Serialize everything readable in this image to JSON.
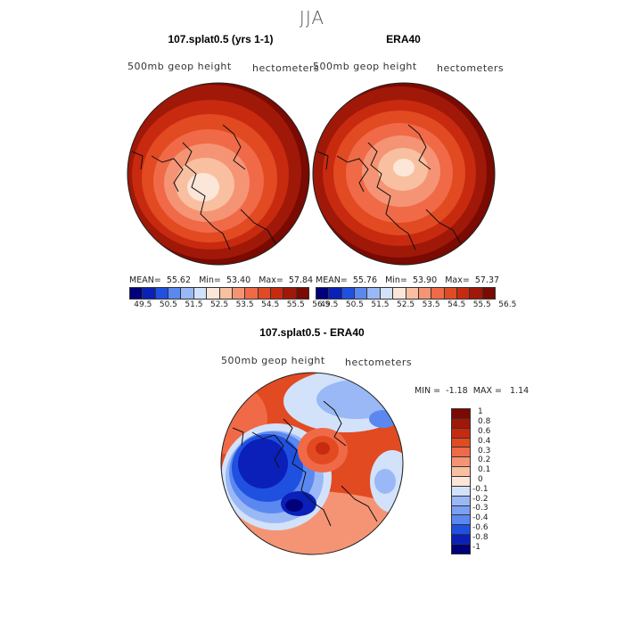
{
  "page": {
    "title": "JJA"
  },
  "panels": [
    {
      "title": "107.splat0.5 (yrs 1-1)",
      "variable": "500mb geop height",
      "units": "hectometers",
      "mean_label": "MEAN=",
      "mean": "55.62",
      "min_label": "Min=",
      "min": "53.40",
      "max_label": "Max=",
      "max": "57.84"
    },
    {
      "title": "ERA40",
      "variable": "500mb geop height",
      "units": "hectometers",
      "mean_label": "MEAN=",
      "mean": "55.76",
      "min_label": "Min=",
      "min": "53.90",
      "max_label": "Max=",
      "max": "57.37"
    },
    {
      "title": "107.splat0.5 - ERA40",
      "variable": "500mb geop height",
      "units": "hectometers",
      "min_label": "MIN =",
      "min": "-1.18",
      "max_label": "MAX =",
      "max": "1.14"
    }
  ],
  "colorbar_abs": {
    "labels": [
      "49.5",
      "50.5",
      "51.5",
      "52.5",
      "53.5",
      "54.5",
      "55.5",
      "56.5"
    ],
    "colors": [
      "#00007a",
      "#0a20b8",
      "#2050e0",
      "#5a88f0",
      "#9ab8f6",
      "#d2e2fa",
      "#fbe6d8",
      "#f8c0a0",
      "#f59474",
      "#f06a48",
      "#e24a22",
      "#c82a10",
      "#a01808",
      "#7a0a02"
    ]
  },
  "colorbar_diff": {
    "labels": [
      "1",
      "0.8",
      "0.6",
      "0.4",
      "0.3",
      "0.2",
      "0.1",
      "0",
      "-0.1",
      "-0.2",
      "-0.3",
      "-0.4",
      "-0.6",
      "-0.8",
      "-1"
    ],
    "colors": [
      "#7a0a02",
      "#a01808",
      "#c82a10",
      "#e24a22",
      "#f06a48",
      "#f59474",
      "#f8c0a0",
      "#fbe6d8",
      "#d2e2fa",
      "#9ab8f6",
      "#7aa0f2",
      "#5a88f0",
      "#2050e0",
      "#0a20b8",
      "#00007a"
    ]
  }
}
